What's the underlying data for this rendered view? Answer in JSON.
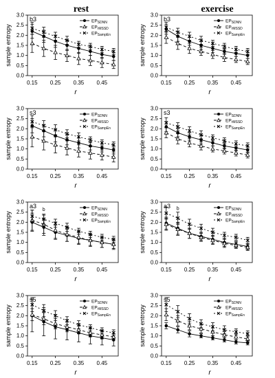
{
  "columns": [
    "rest",
    "exercise"
  ],
  "chart_data": [
    {
      "type": "line",
      "panel_label": "b3",
      "column": "rest",
      "x": [
        0.15,
        0.2,
        0.25,
        0.3,
        0.35,
        0.4,
        0.45,
        0.5
      ],
      "xticks": [
        "0.15",
        "0.25",
        "0.35",
        "0.45"
      ],
      "xlabel": "r",
      "ylabel": "sample entropy",
      "ylim": [
        0,
        3
      ],
      "yticks": [
        "0.0",
        "0.5",
        "1.0",
        "1.5",
        "2.0",
        "2.5",
        "3.0"
      ],
      "legend": [
        "EP",
        "EP",
        "EP"
      ],
      "legend_sub": [
        "SDNN",
        "rMSSD",
        "SampEn"
      ],
      "series": [
        {
          "name": "SDNN",
          "marker": "circle",
          "dash": "solid",
          "values": [
            2.2,
            1.95,
            1.7,
            1.5,
            1.35,
            1.2,
            1.05,
            0.95
          ],
          "err": [
            0.35,
            0.3,
            0.3,
            0.25,
            0.25,
            0.2,
            0.2,
            0.2
          ]
        },
        {
          "name": "rMSSD",
          "marker": "triangle",
          "dash": "dashed",
          "values": [
            1.6,
            1.35,
            1.15,
            1.0,
            0.85,
            0.75,
            0.65,
            0.55
          ],
          "err": [
            0.45,
            0.4,
            0.35,
            0.3,
            0.3,
            0.25,
            0.25,
            0.2
          ]
        },
        {
          "name": "SampEn",
          "marker": "x",
          "dash": "dotted",
          "values": [
            2.35,
            2.15,
            1.95,
            1.75,
            1.55,
            1.45,
            1.3,
            1.2
          ],
          "err": [
            0.3,
            0.25,
            0.2,
            0.2,
            0.15,
            0.15,
            0.15,
            0.15
          ]
        }
      ],
      "annotations": []
    },
    {
      "type": "line",
      "panel_label": "b3",
      "column": "exercise",
      "x": [
        0.15,
        0.2,
        0.25,
        0.3,
        0.35,
        0.4,
        0.45,
        0.5
      ],
      "xticks": [
        "0.15",
        "0.25",
        "0.35",
        "0.45"
      ],
      "xlabel": "r",
      "ylabel": "sample entropy",
      "ylim": [
        0,
        3
      ],
      "yticks": [
        "0.0",
        "0.5",
        "1.0",
        "1.5",
        "2.0",
        "2.5",
        "3.0"
      ],
      "legend": [
        "EP",
        "EP",
        "EP"
      ],
      "legend_sub": [
        "SDNN",
        "rMSSD",
        "SampEn"
      ],
      "series": [
        {
          "name": "SDNN",
          "marker": "circle",
          "dash": "solid",
          "values": [
            2.3,
            1.95,
            1.7,
            1.5,
            1.35,
            1.2,
            1.1,
            1.0
          ],
          "err": [
            0.25,
            0.25,
            0.2,
            0.2,
            0.2,
            0.15,
            0.15,
            0.15
          ]
        },
        {
          "name": "rMSSD",
          "marker": "triangle",
          "dash": "dashed",
          "values": [
            1.9,
            1.6,
            1.35,
            1.2,
            1.05,
            0.9,
            0.8,
            0.7
          ],
          "err": [
            0.3,
            0.3,
            0.25,
            0.2,
            0.2,
            0.2,
            0.15,
            0.15
          ]
        },
        {
          "name": "SampEn",
          "marker": "x",
          "dash": "dotted",
          "values": [
            2.4,
            2.15,
            1.95,
            1.75,
            1.6,
            1.45,
            1.3,
            1.2
          ],
          "err": [
            0.25,
            0.2,
            0.2,
            0.2,
            0.15,
            0.15,
            0.15,
            0.15
          ]
        }
      ],
      "annotations": []
    },
    {
      "type": "line",
      "panel_label": "s3",
      "column": "rest",
      "x": [
        0.15,
        0.2,
        0.25,
        0.3,
        0.35,
        0.4,
        0.45,
        0.5
      ],
      "xticks": [
        "0.15",
        "0.25",
        "0.35",
        "0.45"
      ],
      "xlabel": "r",
      "ylabel": "sample entropy",
      "ylim": [
        0,
        3
      ],
      "yticks": [
        "0.0",
        "0.5",
        "1.0",
        "1.5",
        "2.0",
        "2.5",
        "3.0"
      ],
      "legend": [
        "EP",
        "EP",
        "EP"
      ],
      "legend_sub": [
        "SDNN",
        "rMSSD",
        "SampEn"
      ],
      "series": [
        {
          "name": "SDNN",
          "marker": "circle",
          "dash": "solid",
          "values": [
            2.15,
            1.9,
            1.65,
            1.45,
            1.3,
            1.15,
            1.05,
            0.95
          ],
          "err": [
            0.35,
            0.3,
            0.3,
            0.25,
            0.25,
            0.2,
            0.2,
            0.2
          ]
        },
        {
          "name": "rMSSD",
          "marker": "triangle",
          "dash": "dashed",
          "values": [
            1.6,
            1.4,
            1.2,
            1.05,
            0.9,
            0.8,
            0.7,
            0.6
          ],
          "err": [
            0.5,
            0.45,
            0.4,
            0.35,
            0.3,
            0.3,
            0.25,
            0.25
          ]
        },
        {
          "name": "SampEn",
          "marker": "x",
          "dash": "dotted",
          "values": [
            2.35,
            2.15,
            1.95,
            1.75,
            1.6,
            1.45,
            1.3,
            1.2
          ],
          "err": [
            0.3,
            0.25,
            0.25,
            0.2,
            0.2,
            0.15,
            0.15,
            0.15
          ]
        }
      ],
      "annotations": []
    },
    {
      "type": "line",
      "panel_label": "s3",
      "column": "exercise",
      "x": [
        0.15,
        0.2,
        0.25,
        0.3,
        0.35,
        0.4,
        0.45,
        0.5
      ],
      "xticks": [
        "0.15",
        "0.25",
        "0.35",
        "0.45"
      ],
      "xlabel": "r",
      "ylabel": "sample entropy",
      "ylim": [
        0,
        3
      ],
      "yticks": [
        "0.0",
        "0.5",
        "1.0",
        "1.5",
        "2.0",
        "2.5",
        "3.0"
      ],
      "legend": [
        "EP",
        "EP",
        "EP"
      ],
      "legend_sub": [
        "SDNN",
        "rMSSD",
        "SampEn"
      ],
      "series": [
        {
          "name": "SDNN",
          "marker": "circle",
          "dash": "solid",
          "values": [
            2.1,
            1.8,
            1.6,
            1.45,
            1.3,
            1.15,
            1.05,
            0.95
          ],
          "err": [
            0.25,
            0.2,
            0.2,
            0.2,
            0.15,
            0.15,
            0.15,
            0.15
          ]
        },
        {
          "name": "rMSSD",
          "marker": "triangle",
          "dash": "dashed",
          "values": [
            1.8,
            1.5,
            1.3,
            1.15,
            1.0,
            0.9,
            0.8,
            0.7
          ],
          "err": [
            0.25,
            0.25,
            0.2,
            0.2,
            0.15,
            0.15,
            0.15,
            0.15
          ]
        },
        {
          "name": "SampEn",
          "marker": "x",
          "dash": "dotted",
          "values": [
            2.3,
            2.1,
            1.9,
            1.7,
            1.55,
            1.4,
            1.25,
            1.15
          ],
          "err": [
            0.25,
            0.2,
            0.2,
            0.2,
            0.15,
            0.15,
            0.15,
            0.15
          ]
        }
      ],
      "annotations": []
    },
    {
      "type": "line",
      "panel_label": "a3",
      "column": "rest",
      "x": [
        0.15,
        0.2,
        0.25,
        0.3,
        0.35,
        0.4,
        0.45,
        0.5
      ],
      "xticks": [
        "0.15",
        "0.25",
        "0.35",
        "0.45"
      ],
      "xlabel": "r",
      "ylabel": "sample entropy",
      "ylim": [
        0,
        3
      ],
      "yticks": [
        "0.0",
        "0.5",
        "1.0",
        "1.5",
        "2.0",
        "2.5",
        "3.0"
      ],
      "legend": [
        "EP",
        "EP",
        "EP"
      ],
      "legend_sub": [
        "SDNN",
        "rMSSD",
        "SampEn"
      ],
      "series": [
        {
          "name": "SDNN",
          "marker": "circle",
          "dash": "solid",
          "values": [
            2.0,
            1.75,
            1.5,
            1.35,
            1.2,
            1.1,
            1.0,
            0.9
          ],
          "err": [
            0.45,
            0.4,
            0.35,
            0.3,
            0.3,
            0.25,
            0.25,
            0.2
          ]
        },
        {
          "name": "rMSSD",
          "marker": "triangle",
          "dash": "dashed",
          "values": [
            2.1,
            1.9,
            1.6,
            1.4,
            1.25,
            1.1,
            1.0,
            0.9
          ],
          "err": [
            0.5,
            0.45,
            0.4,
            0.35,
            0.3,
            0.3,
            0.25,
            0.25
          ]
        },
        {
          "name": "SampEn",
          "marker": "x",
          "dash": "dotted",
          "values": [
            2.3,
            2.15,
            1.95,
            1.75,
            1.55,
            1.4,
            1.25,
            1.15
          ],
          "err": [
            0.3,
            0.25,
            0.2,
            0.2,
            0.15,
            0.15,
            0.15,
            0.15
          ]
        }
      ],
      "annotations": [
        {
          "x": 0.2,
          "y": 2.55,
          "text": "b"
        }
      ]
    },
    {
      "type": "line",
      "panel_label": "a3",
      "column": "exercise",
      "x": [
        0.15,
        0.2,
        0.25,
        0.3,
        0.35,
        0.4,
        0.45,
        0.5
      ],
      "xticks": [
        "0.15",
        "0.25",
        "0.35",
        "0.45"
      ],
      "xlabel": "r",
      "ylabel": "sample entropy",
      "ylim": [
        0,
        3
      ],
      "yticks": [
        "0.0",
        "0.5",
        "1.0",
        "1.5",
        "2.0",
        "2.5",
        "3.0"
      ],
      "legend": [
        "EP",
        "EP",
        "EP"
      ],
      "legend_sub": [
        "SDNN",
        "rMSSD",
        "SampEn"
      ],
      "series": [
        {
          "name": "SDNN",
          "marker": "circle",
          "dash": "solid",
          "values": [
            1.95,
            1.7,
            1.45,
            1.3,
            1.15,
            1.0,
            0.9,
            0.8
          ],
          "err": [
            0.3,
            0.3,
            0.25,
            0.2,
            0.2,
            0.2,
            0.15,
            0.15
          ]
        },
        {
          "name": "rMSSD",
          "marker": "triangle",
          "dash": "dashed",
          "values": [
            1.9,
            1.65,
            1.45,
            1.25,
            1.1,
            0.95,
            0.85,
            0.75
          ],
          "err": [
            0.3,
            0.3,
            0.25,
            0.2,
            0.2,
            0.2,
            0.15,
            0.15
          ]
        },
        {
          "name": "SampEn",
          "marker": "x",
          "dash": "dotted",
          "values": [
            2.45,
            2.2,
            1.9,
            1.7,
            1.5,
            1.35,
            1.25,
            1.1
          ],
          "err": [
            0.3,
            0.3,
            0.25,
            0.2,
            0.2,
            0.15,
            0.15,
            0.15
          ]
        }
      ],
      "annotations": [
        {
          "x": 0.2,
          "y": 2.6,
          "text": "b"
        }
      ]
    },
    {
      "type": "line",
      "panel_label": "s5",
      "column": "rest",
      "x": [
        0.15,
        0.2,
        0.25,
        0.3,
        0.35,
        0.4,
        0.45,
        0.5
      ],
      "xticks": [
        "0.15",
        "0.25",
        "0.35",
        "0.45"
      ],
      "xlabel": "r",
      "ylabel": "sample entropy",
      "ylim": [
        0,
        3
      ],
      "yticks": [
        "0.0",
        "0.5",
        "1.0",
        "1.5",
        "2.0",
        "2.5",
        "3.0"
      ],
      "legend": [
        "EP",
        "EP",
        "EP"
      ],
      "legend_sub": [
        "SDNN",
        "rMSSD",
        "SampEn"
      ],
      "series": [
        {
          "name": "SDNN",
          "marker": "circle",
          "dash": "solid",
          "values": [
            2.0,
            1.7,
            1.45,
            1.3,
            1.15,
            1.0,
            0.9,
            0.8
          ],
          "err": [
            0.8,
            0.7,
            0.6,
            0.5,
            0.45,
            0.4,
            0.35,
            0.3
          ]
        },
        {
          "name": "rMSSD",
          "marker": "triangle",
          "dash": "dashed",
          "values": [
            2.05,
            1.85,
            1.6,
            1.45,
            1.3,
            1.15,
            1.05,
            0.95
          ],
          "err": [
            0.3,
            0.3,
            0.25,
            0.25,
            0.2,
            0.2,
            0.2,
            0.15
          ]
        },
        {
          "name": "SampEn",
          "marker": "x",
          "dash": "dotted",
          "values": [
            2.55,
            2.25,
            2.0,
            1.75,
            1.55,
            1.4,
            1.25,
            1.15
          ],
          "err": [
            0.35,
            0.3,
            0.25,
            0.2,
            0.2,
            0.15,
            0.15,
            0.15
          ]
        }
      ],
      "annotations": []
    },
    {
      "type": "line",
      "panel_label": "s5",
      "column": "exercise",
      "x": [
        0.15,
        0.2,
        0.25,
        0.3,
        0.35,
        0.4,
        0.45,
        0.5
      ],
      "xticks": [
        "0.15",
        "0.25",
        "0.35",
        "0.45"
      ],
      "xlabel": "r",
      "ylabel": "sample entropy",
      "ylim": [
        0,
        3
      ],
      "yticks": [
        "0.0",
        "0.5",
        "1.0",
        "1.5",
        "2.0",
        "2.5",
        "3.0"
      ],
      "legend": [
        "EP",
        "EP",
        "EP"
      ],
      "legend_sub": [
        "SDNN",
        "rMSSD",
        "SampEn"
      ],
      "series": [
        {
          "name": "SDNN",
          "marker": "circle",
          "dash": "solid",
          "values": [
            1.5,
            1.3,
            1.1,
            1.0,
            0.9,
            0.8,
            0.7,
            0.65
          ],
          "err": [
            0.15,
            0.15,
            0.15,
            0.1,
            0.1,
            0.1,
            0.1,
            0.1
          ]
        },
        {
          "name": "rMSSD",
          "marker": "triangle",
          "dash": "dashed",
          "values": [
            2.05,
            1.75,
            1.5,
            1.35,
            1.2,
            1.05,
            0.95,
            0.85
          ],
          "err": [
            0.3,
            0.25,
            0.2,
            0.2,
            0.2,
            0.15,
            0.15,
            0.15
          ]
        },
        {
          "name": "SampEn",
          "marker": "x",
          "dash": "dotted",
          "values": [
            2.55,
            2.2,
            1.85,
            1.6,
            1.45,
            1.3,
            1.2,
            1.1
          ],
          "err": [
            0.35,
            0.3,
            0.25,
            0.2,
            0.2,
            0.2,
            0.15,
            0.15
          ]
        }
      ],
      "annotations": []
    }
  ]
}
